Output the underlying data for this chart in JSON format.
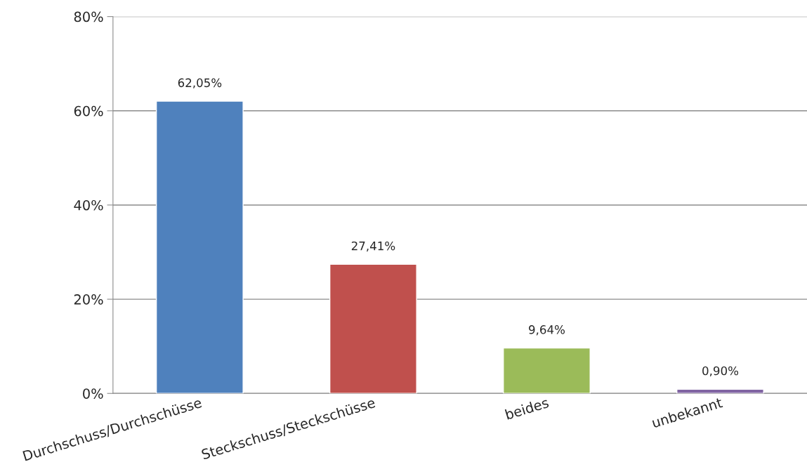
{
  "chart_data": {
    "type": "bar",
    "categories": [
      "Durchschuss/Durchschüsse",
      "Steckschuss/Steckschüsse",
      "beides",
      "unbekannt"
    ],
    "values": [
      62.05,
      27.41,
      9.64,
      0.9
    ],
    "colors": [
      "#4f81bd",
      "#c0504d",
      "#9bbb59",
      "#8064a2"
    ],
    "value_labels": [
      "62,05%",
      "27,41%",
      "9,64%",
      "0,90%"
    ],
    "ylim": [
      0,
      80
    ],
    "yticks": [
      {
        "value": 0,
        "label": "0%"
      },
      {
        "value": 20,
        "label": "20%"
      },
      {
        "value": 40,
        "label": "40%"
      },
      {
        "value": 60,
        "label": "60%"
      },
      {
        "value": 80,
        "label": "80%"
      }
    ],
    "grid": "y",
    "legend": false
  }
}
